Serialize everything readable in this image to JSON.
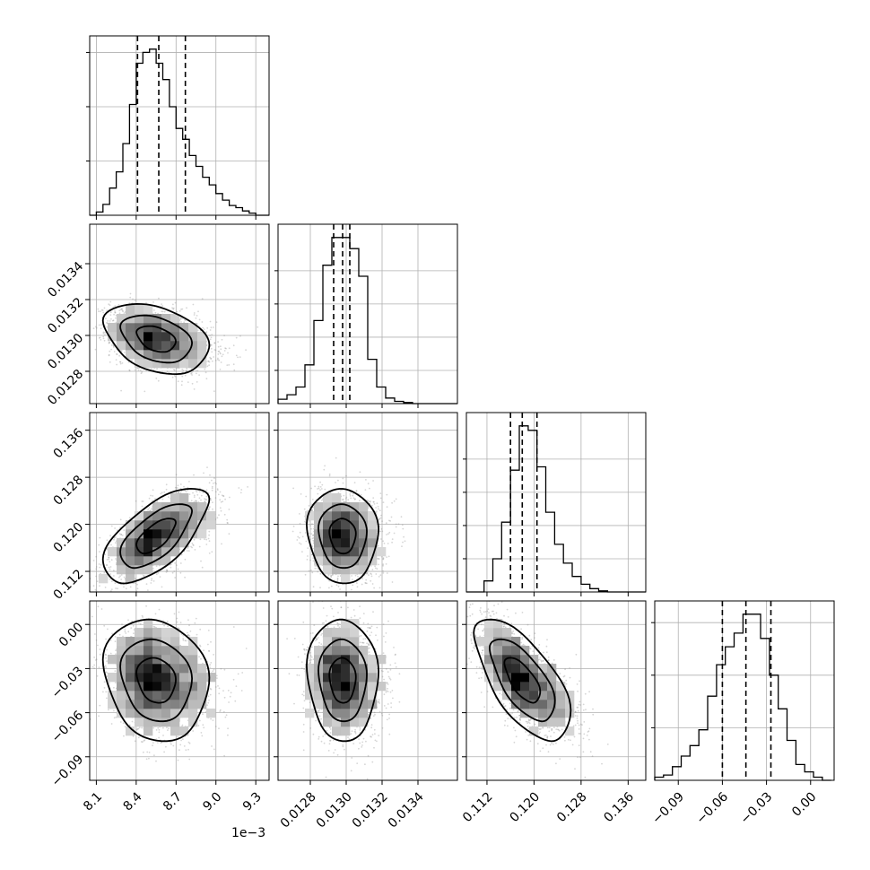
{
  "chart_data": {
    "type": "corner",
    "parameters": [
      {
        "range": [
          8.05,
          9.4
        ],
        "ticks": [
          8.1,
          8.4,
          8.7,
          9.0,
          9.3
        ],
        "tick_labels": [
          "8.1",
          "8.4",
          "8.7",
          "9.0",
          "9.3"
        ],
        "offset_text": "1e−3"
      },
      {
        "range": [
          0.01262,
          0.01362
        ],
        "ticks": [
          0.0128,
          0.013,
          0.0132,
          0.0134
        ],
        "tick_labels": [
          "0.0128",
          "0.0130",
          "0.0132",
          "0.0134"
        ],
        "offset_text": ""
      },
      {
        "range": [
          0.1085,
          0.139
        ],
        "ticks": [
          0.112,
          0.12,
          0.128,
          0.136
        ],
        "tick_labels": [
          "0.112",
          "0.120",
          "0.128",
          "0.136"
        ],
        "offset_text": ""
      },
      {
        "range": [
          -0.106,
          0.016
        ],
        "ticks": [
          -0.09,
          -0.06,
          -0.03,
          0.0
        ],
        "tick_labels": [
          "−0.09",
          "−0.06",
          "−0.03",
          "0.00"
        ],
        "offset_text": ""
      }
    ],
    "histograms": [
      {
        "bins": [
          8.05,
          8.1,
          8.15,
          8.2,
          8.25,
          8.3,
          8.35,
          8.4,
          8.45,
          8.5,
          8.55,
          8.6,
          8.65,
          8.7,
          8.75,
          8.8,
          8.85,
          8.9,
          8.95,
          9.0,
          9.05,
          9.1,
          9.15,
          9.2,
          9.25,
          9.3,
          9.35,
          9.4
        ],
        "counts": [
          0,
          3,
          10,
          25,
          40,
          66,
          102,
          140,
          150,
          153,
          140,
          125,
          100,
          80,
          70,
          55,
          45,
          35,
          28,
          20,
          14,
          9,
          7,
          4,
          2,
          0,
          0
        ]
      },
      {
        "bins": [
          0.01262,
          0.01267,
          0.01272,
          0.01277,
          0.01282,
          0.01287,
          0.01292,
          0.01297,
          0.01302,
          0.01307,
          0.01312,
          0.01317,
          0.01322,
          0.01327,
          0.01332,
          0.01337,
          0.01342,
          0.01347,
          0.01352,
          0.01357,
          0.01362
        ],
        "counts": [
          4,
          8,
          15,
          35,
          75,
          125,
          150,
          150,
          140,
          115,
          40,
          15,
          5,
          2,
          1,
          0,
          0,
          0,
          0,
          0
        ]
      },
      {
        "bins": [
          0.1085,
          0.11,
          0.1115,
          0.113,
          0.1145,
          0.116,
          0.1175,
          0.119,
          0.1205,
          0.122,
          0.1235,
          0.125,
          0.1265,
          0.128,
          0.1295,
          0.131,
          0.1325,
          0.134,
          0.1355,
          0.137,
          0.139
        ],
        "counts": [
          0,
          0,
          10,
          30,
          63,
          110,
          150,
          146,
          113,
          72,
          43,
          26,
          14,
          7,
          3,
          1,
          0,
          0,
          0,
          0
        ]
      },
      {
        "bins": [
          -0.106,
          -0.1,
          -0.094,
          -0.088,
          -0.082,
          -0.076,
          -0.07,
          -0.064,
          -0.058,
          -0.052,
          -0.046,
          -0.04,
          -0.034,
          -0.028,
          -0.022,
          -0.016,
          -0.01,
          -0.004,
          0.002,
          0.008,
          0.014
        ],
        "counts": [
          3,
          5,
          13,
          23,
          33,
          48,
          80,
          110,
          127,
          140,
          158,
          158,
          135,
          100,
          68,
          38,
          15,
          8,
          3,
          0
        ]
      }
    ],
    "quantiles": [
      [
        8.41,
        8.57,
        8.77
      ],
      [
        0.01293,
        0.01298,
        0.01302
      ],
      [
        0.116,
        0.118,
        0.1205
      ],
      [
        -0.06,
        -0.044,
        -0.027
      ]
    ],
    "histogram_y_ticks": [
      [
        50,
        100,
        150
      ],
      [
        30,
        60,
        90,
        120
      ],
      [
        30,
        60,
        90,
        120
      ],
      [
        50,
        100,
        150
      ]
    ],
    "scatter_blobs": [
      {
        "row": 1,
        "col": 0,
        "mean": [
          8.55,
          0.01298
        ],
        "sd": [
          0.17,
          8.5e-05
        ],
        "rho": -0.35
      },
      {
        "row": 2,
        "col": 0,
        "mean": [
          8.55,
          0.118
        ],
        "sd": [
          0.17,
          0.0035
        ],
        "rho": 0.65
      },
      {
        "row": 2,
        "col": 1,
        "mean": [
          0.01298,
          0.118
        ],
        "sd": [
          8.5e-05,
          0.0035
        ],
        "rho": -0.05
      },
      {
        "row": 3,
        "col": 0,
        "mean": [
          8.55,
          -0.038
        ],
        "sd": [
          0.17,
          0.018
        ],
        "rho": -0.15
      },
      {
        "row": 3,
        "col": 1,
        "mean": [
          0.01298,
          -0.038
        ],
        "sd": [
          8.5e-05,
          0.018
        ],
        "rho": -0.05
      },
      {
        "row": 3,
        "col": 2,
        "mean": [
          0.118,
          -0.038
        ],
        "sd": [
          0.0035,
          0.018
        ],
        "rho": -0.65
      }
    ],
    "grid": true,
    "style": {
      "line_color": "#000000",
      "point_color": "#8a8a8a",
      "background": "#ffffff"
    }
  }
}
